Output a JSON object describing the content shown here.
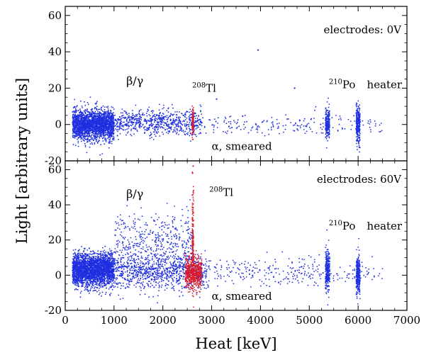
{
  "chart_data": [
    {
      "type": "scatter",
      "panel": "top",
      "condition_label": "electrodes: 0V",
      "xlim": [
        0,
        7000
      ],
      "ylim": [
        -20,
        65
      ],
      "yticks": [
        -20,
        0,
        20,
        40,
        60
      ],
      "grid": false,
      "series": [
        {
          "color": "#1f2fe0",
          "clusters": [
            {
              "x_range": [
                150,
                1000
              ],
              "y_center": 0,
              "y_spread": 4.0,
              "count": 2200
            },
            {
              "x_range": [
                1000,
                2800
              ],
              "y_center": 1,
              "y_spread": 3.5,
              "count": 700
            },
            {
              "x_range": [
                2800,
                5300
              ],
              "y_center": 0,
              "y_spread": 3.0,
              "count": 150
            },
            {
              "x_range": [
                5330,
                5420
              ],
              "y_center": 0,
              "y_spread": 4.0,
              "count": 220
            },
            {
              "x_range": [
                5960,
                6040
              ],
              "y_center": 0,
              "y_spread": 5.0,
              "count": 260
            },
            {
              "x_range": [
                5420,
                6500
              ],
              "y_center": 0,
              "y_spread": 3.0,
              "count": 40
            }
          ],
          "points": [
            {
              "x": 3950,
              "y": 41
            },
            {
              "x": 4700,
              "y": 20
            },
            {
              "x": 3100,
              "y": 14
            }
          ]
        },
        {
          "color": "#d81b2c",
          "clusters": [
            {
              "x_range": [
                2600,
                2630
              ],
              "y_center": 1,
              "y_spread": 4.0,
              "count": 120
            }
          ]
        }
      ],
      "annotations": [
        {
          "text": "β/γ",
          "x": 1250,
          "y": 22
        },
        {
          "text": "Tl",
          "superscript": "208",
          "x": 2600,
          "y": 18
        },
        {
          "text": "Po",
          "superscript": "210",
          "x": 5400,
          "y": 20
        },
        {
          "text": "heater",
          "x": 6180,
          "y": 20
        },
        {
          "text": "α, smeared",
          "x": 3000,
          "y": -14
        }
      ]
    },
    {
      "type": "scatter",
      "panel": "bottom",
      "condition_label": "electrodes: 60V",
      "xlim": [
        0,
        7000
      ],
      "ylim": [
        -20,
        65
      ],
      "yticks": [
        -20,
        0,
        20,
        40,
        60
      ],
      "xticks": [
        0,
        1000,
        2000,
        3000,
        4000,
        5000,
        6000,
        7000
      ],
      "grid": false,
      "series": [
        {
          "color": "#1f2fe0",
          "clusters": [
            {
              "x_range": [
                150,
                1000
              ],
              "y_center": 3,
              "y_spread": 4.5,
              "count": 2600
            },
            {
              "x_range": [
                1000,
                2900
              ],
              "y_center": 2,
              "y_spread": 5.0,
              "count": 900
            },
            {
              "x_range": [
                1000,
                2600
              ],
              "y_center": 18,
              "y_spread": 9.0,
              "count": 450
            },
            {
              "x_range": [
                2900,
                5300
              ],
              "y_center": 2,
              "y_spread": 4.0,
              "count": 220
            },
            {
              "x_range": [
                5330,
                5420
              ],
              "y_center": 3,
              "y_spread": 6.0,
              "count": 260
            },
            {
              "x_range": [
                5960,
                6040
              ],
              "y_center": 0,
              "y_spread": 5.5,
              "count": 280
            },
            {
              "x_range": [
                5420,
                6500
              ],
              "y_center": 1,
              "y_spread": 3.0,
              "count": 50
            }
          ]
        },
        {
          "color": "#d81b2c",
          "clusters": [
            {
              "x_range": [
                2600,
                2630
              ],
              "y_center": 22,
              "y_spread": 14.0,
              "count": 160
            },
            {
              "x_range": [
                2450,
                2800
              ],
              "y_center": 1,
              "y_spread": 4.0,
              "count": 550
            }
          ],
          "points": [
            {
              "x": 2620,
              "y": 62
            },
            {
              "x": 2610,
              "y": 58
            }
          ]
        }
      ],
      "annotations": [
        {
          "text": "β/γ",
          "x": 1250,
          "y": 44
        },
        {
          "text": "Tl",
          "superscript": "208",
          "x": 2950,
          "y": 45
        },
        {
          "text": "Po",
          "superscript": "210",
          "x": 5400,
          "y": 26
        },
        {
          "text": "heater",
          "x": 6180,
          "y": 26
        },
        {
          "text": "α, smeared",
          "x": 3000,
          "y": -14
        }
      ]
    }
  ],
  "xlabel": "Heat [keV]",
  "ylabel": "Light [arbitrary units]"
}
